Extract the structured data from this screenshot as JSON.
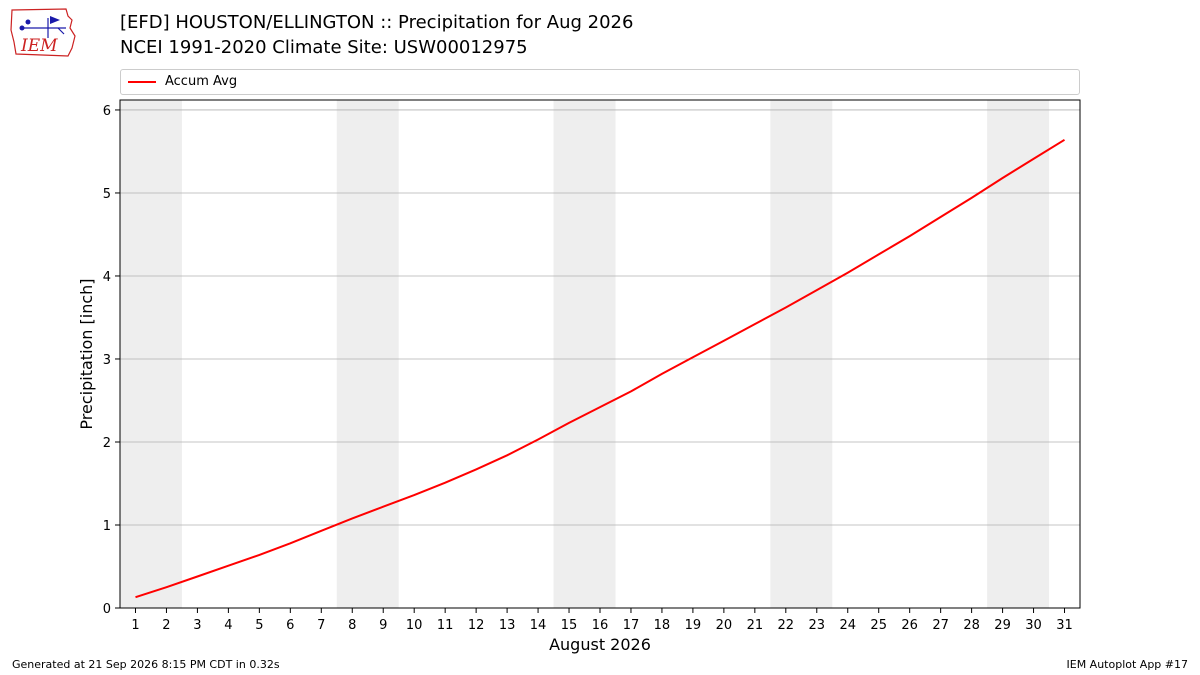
{
  "header": {
    "logo_text": "IEM",
    "title_line1": "[EFD] HOUSTON/ELLINGTON :: Precipitation for Aug 2026",
    "title_line2": "NCEI 1991-2020 Climate Site: USW00012975"
  },
  "footer": {
    "generated": "Generated at 21 Sep 2026 8:15 PM CDT in 0.32s",
    "app": "IEM Autoplot App #17"
  },
  "colors": {
    "series": "#ff0000",
    "weekend_band": "#eeeeee",
    "grid": "#b0b0b0",
    "logo_red": "#cc2222",
    "logo_blue": "#1a1aaa"
  },
  "chart_data": {
    "type": "line",
    "xlabel": "August 2026",
    "ylabel": "Precipitation [inch]",
    "xlim": [
      0.5,
      31.5
    ],
    "ylim": [
      0,
      6.12
    ],
    "yticks": [
      0,
      1,
      2,
      3,
      4,
      5,
      6
    ],
    "grid": "horizontal",
    "legend_position": "top",
    "weekend_bands": [
      [
        0.5,
        2.5
      ],
      [
        7.5,
        9.5
      ],
      [
        14.5,
        16.5
      ],
      [
        21.5,
        23.5
      ],
      [
        28.5,
        30.5
      ]
    ],
    "x": [
      1,
      2,
      3,
      4,
      5,
      6,
      7,
      8,
      9,
      10,
      11,
      12,
      13,
      14,
      15,
      16,
      17,
      18,
      19,
      20,
      21,
      22,
      23,
      24,
      25,
      26,
      27,
      28,
      29,
      30,
      31
    ],
    "series": [
      {
        "name": "Accum Avg",
        "color": "#ff0000",
        "values": [
          0.13,
          0.25,
          0.38,
          0.51,
          0.64,
          0.78,
          0.93,
          1.08,
          1.22,
          1.36,
          1.51,
          1.67,
          1.84,
          2.03,
          2.23,
          2.42,
          2.61,
          2.82,
          3.02,
          3.22,
          3.42,
          3.62,
          3.83,
          4.04,
          4.26,
          4.48,
          4.71,
          4.94,
          5.18,
          5.41,
          5.64
        ]
      }
    ]
  }
}
